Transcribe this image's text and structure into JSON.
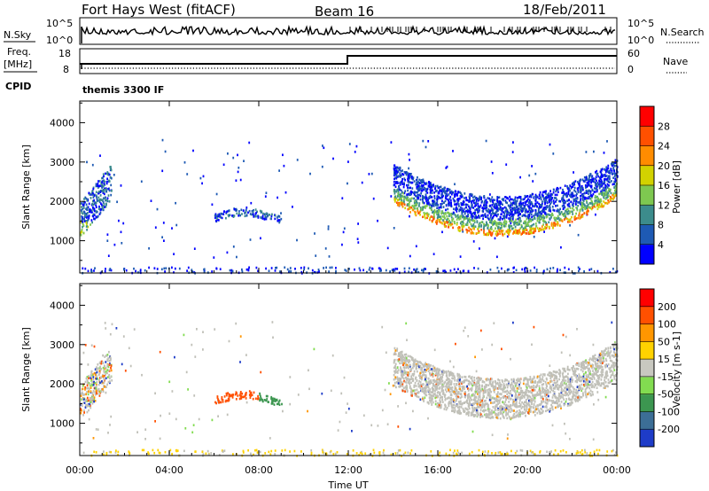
{
  "header": {
    "title": "Fort Hays West (fitACF)",
    "beam": "Beam 16",
    "date": "18/Feb/2011"
  },
  "top_panel": {
    "left_label": "N.Sky",
    "right_label": "N.Search",
    "left_ticks": [
      "10^5",
      "10^0"
    ],
    "right_ticks": [
      "10^5",
      "10^0"
    ]
  },
  "freq_panel": {
    "left_label_line1": "Freq.",
    "left_label_line2": "[MHz]",
    "right_label": "Nave",
    "left_ticks": [
      "18",
      "8"
    ],
    "right_ticks": [
      "60",
      "0"
    ]
  },
  "cpid": {
    "label": "CPID",
    "value": "themis 3300 IF"
  },
  "chart_data": [
    {
      "type": "heatmap",
      "name_text": "Power",
      "ylabel": "Slant Range [km]",
      "ylim": [
        180,
        4550
      ],
      "yticks": [
        1000,
        2000,
        3000,
        4000
      ],
      "xlim": [
        0,
        24
      ],
      "colorbar_label": "Power [dB]",
      "colorbar_ticks": [
        "4",
        "8",
        "12",
        "16",
        "20",
        "24",
        "28"
      ],
      "colorbar_colors": [
        "#0000ff",
        "#1e5ab4",
        "#3c8c8c",
        "#7ec850",
        "#d2d200",
        "#ff8c00",
        "#ff5000",
        "#ff0000"
      ]
    },
    {
      "type": "heatmap",
      "name_text": "Velocity",
      "ylabel": "Slant Range [km]",
      "ylim": [
        180,
        4550
      ],
      "yticks": [
        1000,
        2000,
        3000,
        4000
      ],
      "xlim": [
        0,
        24
      ],
      "colorbar_label": "Velocity [m s-1]",
      "colorbar_ticks": [
        "200",
        "100",
        "50",
        "15",
        "-15",
        "-50",
        "-100",
        "-200"
      ],
      "colorbar_colors": [
        "#1e3cc8",
        "#3c6e96",
        "#3c9650",
        "#82dc50",
        "#c8c8c0",
        "#ffd200",
        "#ff9600",
        "#ff5000",
        "#ff0000"
      ]
    }
  ],
  "x_axis": {
    "ticks": [
      "00:00",
      "04:00",
      "08:00",
      "12:00",
      "16:00",
      "20:00",
      "00:00"
    ],
    "label": "Time UT"
  },
  "colors": {
    "ground_scatter": "#c0c0b8",
    "axis": "#000000"
  }
}
